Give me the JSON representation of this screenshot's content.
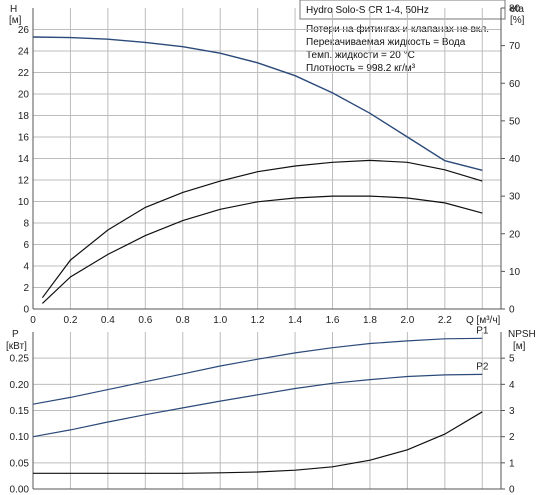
{
  "title": "Hydro Solo-S CR 1-4, 50Hz",
  "notes": [
    "Потери на фитингах и клапанах не вкл.",
    "Перекачиваемая жидкость = Вода",
    "Темп. жидкости = 20 °C",
    "Плотность = 998.2 кг/м³"
  ],
  "colors": {
    "head": "#2b4a7a",
    "eta": "#111111",
    "power": "#2b4a7a",
    "npsh": "#111111",
    "grid": "#bdbdbd"
  },
  "chart_data": [
    {
      "type": "line",
      "name": "upper",
      "x_label": "Q [м³/ч]",
      "x_ticks": [
        "0",
        "0.2",
        "0.4",
        "0.6",
        "0.8",
        "1.0",
        "1.2",
        "1.4",
        "1.6",
        "1.8",
        "2.0",
        "2.2"
      ],
      "xlim": [
        0,
        2.5
      ],
      "left_axis": {
        "label_top": "H",
        "unit": "[м]",
        "ylim": [
          0,
          28
        ],
        "ticks": [
          "0",
          "2",
          "4",
          "6",
          "8",
          "10",
          "12",
          "14",
          "16",
          "18",
          "20",
          "22",
          "24",
          "26"
        ]
      },
      "right_axis": {
        "label_top": "eta",
        "unit": "[%]",
        "ylim": [
          0,
          80
        ],
        "ticks": [
          "0",
          "10",
          "20",
          "30",
          "40",
          "50",
          "60",
          "70",
          "80"
        ]
      },
      "series": [
        {
          "axis": "left",
          "color": "#2b4a7a",
          "x": [
            0,
            0.2,
            0.4,
            0.6,
            0.8,
            1.0,
            1.2,
            1.4,
            1.6,
            1.8,
            2.0,
            2.2,
            2.4
          ],
          "y": [
            25.3,
            25.25,
            25.1,
            24.8,
            24.4,
            23.8,
            22.9,
            21.7,
            20.1,
            18.2,
            16.0,
            13.8,
            12.9
          ]
        },
        {
          "axis": "right",
          "color": "#111111",
          "x": [
            0.05,
            0.2,
            0.4,
            0.6,
            0.8,
            1.0,
            1.2,
            1.4,
            1.6,
            1.8,
            2.0,
            2.2,
            2.4
          ],
          "y": [
            3,
            13,
            21,
            27,
            31,
            34,
            36.5,
            38,
            39,
            39.5,
            39,
            37,
            34
          ]
        },
        {
          "axis": "right",
          "color": "#111111",
          "x": [
            0.05,
            0.2,
            0.4,
            0.6,
            0.8,
            1.0,
            1.2,
            1.4,
            1.6,
            1.8,
            2.0,
            2.2,
            2.4
          ],
          "y": [
            1.5,
            8.5,
            14.5,
            19.5,
            23.5,
            26.5,
            28.5,
            29.5,
            30,
            30,
            29.5,
            28.2,
            25.5
          ]
        }
      ]
    },
    {
      "type": "line",
      "name": "lower",
      "xlim": [
        0,
        2.5
      ],
      "left_axis": {
        "label_top": "P",
        "unit": "[кВт]",
        "ylim": [
          0,
          0.3
        ],
        "ticks": [
          "0.00",
          "0.05",
          "0.10",
          "0.15",
          "0.20",
          "0.25"
        ]
      },
      "right_axis": {
        "label_top": "NPSH",
        "unit": "[м]",
        "ylim": [
          0,
          6
        ],
        "ticks": [
          "0",
          "1",
          "2",
          "3",
          "4",
          "5"
        ]
      },
      "series": [
        {
          "name": "P1",
          "axis": "left",
          "color": "#2b4a7a",
          "x": [
            0,
            0.2,
            0.4,
            0.6,
            0.8,
            1.0,
            1.2,
            1.4,
            1.6,
            1.8,
            2.0,
            2.2,
            2.4
          ],
          "y": [
            0.162,
            0.175,
            0.19,
            0.205,
            0.22,
            0.235,
            0.248,
            0.26,
            0.27,
            0.278,
            0.283,
            0.287,
            0.288
          ]
        },
        {
          "name": "P2",
          "axis": "left",
          "color": "#2b4a7a",
          "x": [
            0,
            0.2,
            0.4,
            0.6,
            0.8,
            1.0,
            1.2,
            1.4,
            1.6,
            1.8,
            2.0,
            2.2,
            2.4
          ],
          "y": [
            0.1,
            0.113,
            0.128,
            0.142,
            0.155,
            0.168,
            0.18,
            0.192,
            0.202,
            0.209,
            0.215,
            0.218,
            0.219
          ]
        },
        {
          "axis": "right",
          "color": "#111111",
          "x": [
            0,
            0.2,
            0.4,
            0.6,
            0.8,
            1.0,
            1.2,
            1.4,
            1.6,
            1.8,
            2.0,
            2.2,
            2.4
          ],
          "y": [
            0.6,
            0.6,
            0.6,
            0.6,
            0.6,
            0.62,
            0.65,
            0.72,
            0.85,
            1.1,
            1.5,
            2.1,
            2.95
          ]
        }
      ]
    }
  ]
}
